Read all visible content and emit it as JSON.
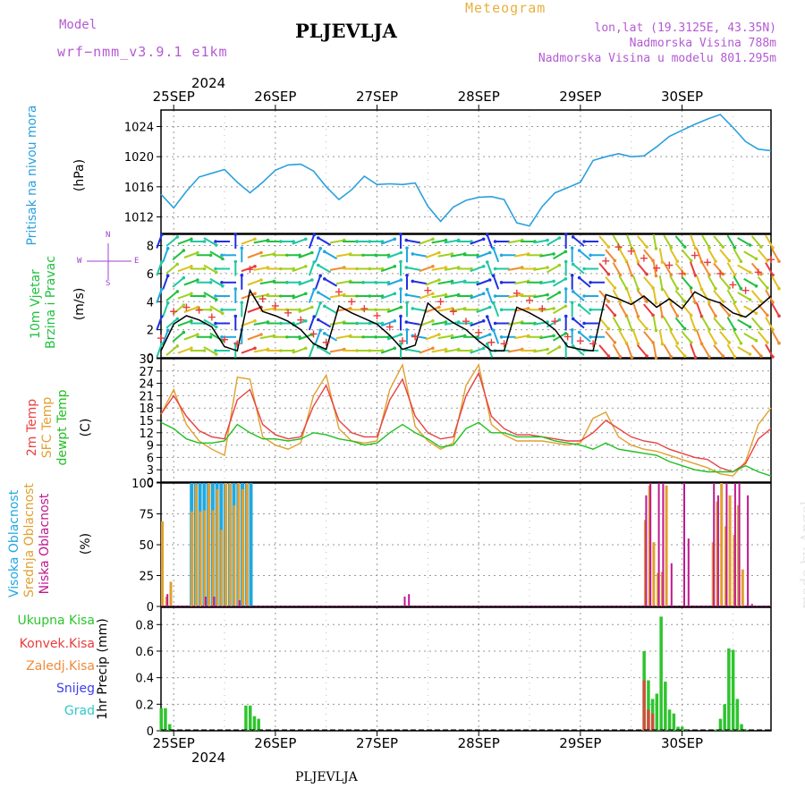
{
  "header": {
    "model_label": "Model",
    "model_name": "wrf−nmm_v3.9.1  e1km",
    "station": "PLJEVLJA",
    "product": "Meteogram",
    "lonlat": "lon,lat (19.3125E, 43.35N)",
    "elevation": "Nadmorska Visina 788m",
    "model_elevation": "Nadmorska Visina u modelu 801.295m",
    "year_top": "2024",
    "year_bottom": "2024",
    "footer_station": "PLJEVLJA",
    "credit": "made by Angel"
  },
  "panel_labels": {
    "pressure": [
      "Pritisak na nivou mora",
      "(hPa)"
    ],
    "wind": [
      "10m Vjetar",
      "Brzina i Pravac",
      "(m/s)"
    ],
    "temp": [
      "2m Temp",
      "SFC Temp",
      "dewpt Temp",
      "(C)"
    ],
    "cloud": [
      "Visoka Oblacnost",
      "Srednja Oblacnost",
      "Niska Oblacnost",
      "(%)"
    ],
    "precip": [
      "1hr Precip (mm)"
    ],
    "compass": {
      "n": "N",
      "s": "S",
      "w": "W",
      "e": "E"
    }
  },
  "precip_legend": [
    {
      "label": "Ukupna Kisa",
      "color": "#2ec42e"
    },
    {
      "label": "Konvek.Kisa",
      "color": "#e83c3c"
    },
    {
      "label": "Zaledj.Kisa",
      "color": "#f08a3c"
    },
    {
      "label": "Snijeg",
      "color": "#3c3cf0"
    },
    {
      "label": "Grad",
      "color": "#30c8c8"
    }
  ],
  "colors": {
    "pressure": "#2aa0dc",
    "t2m": "#e84040",
    "tsfc": "#e0a030",
    "dewpt": "#20c020",
    "wind_speed": "#000000",
    "gust": "#e83c3c",
    "high_cloud": "#20a8e0",
    "mid_cloud": "#e0a030",
    "low_cloud": "#c01890"
  },
  "chart_data": [
    {
      "type": "line",
      "name": "pressure",
      "x_unit": "hours from 2024-09-24 21:00 UTC",
      "xticks": [
        "25SEP",
        "26SEP",
        "27SEP",
        "28SEP",
        "29SEP",
        "30SEP"
      ],
      "xlim": [
        0,
        144
      ],
      "ylabel": "(hPa)",
      "yticks": [
        1012,
        1016,
        1020,
        1024
      ],
      "ylim": [
        1009.8,
        1026.2
      ],
      "x": [
        0,
        3,
        6,
        9,
        12,
        15,
        18,
        21,
        24,
        27,
        30,
        33,
        36,
        39,
        42,
        45,
        48,
        51,
        54,
        57,
        60,
        63,
        66,
        69,
        72,
        75,
        78,
        81,
        84,
        87,
        90,
        93,
        96,
        99,
        102,
        105,
        108,
        111,
        114,
        117,
        120,
        123,
        126,
        129,
        132,
        135,
        138,
        141,
        144
      ],
      "values": [
        1015.0,
        1013.2,
        1015.4,
        1017.3,
        1017.8,
        1018.3,
        1016.6,
        1015.2,
        1016.6,
        1018.2,
        1018.9,
        1019.0,
        1018.1,
        1016.0,
        1014.3,
        1015.6,
        1017.4,
        1016.3,
        1016.4,
        1016.3,
        1016.5,
        1013.4,
        1011.4,
        1013.3,
        1014.2,
        1014.6,
        1014.7,
        1014.3,
        1011.2,
        1010.8,
        1013.4,
        1015.2,
        1015.9,
        1016.6,
        1019.5,
        1020.0,
        1020.4,
        1020.0,
        1020.1,
        1021.3,
        1022.7,
        1023.5,
        1024.3,
        1025.0,
        1025.6,
        1023.9,
        1022.0,
        1021.0,
        1020.8
      ]
    },
    {
      "type": "line",
      "name": "wind",
      "ylabel": "(m/s)",
      "yticks": [
        0,
        2,
        4,
        6,
        8
      ],
      "ylim": [
        0,
        8.8
      ],
      "series": [
        {
          "name": "speed",
          "x": [
            0,
            3,
            6,
            9,
            12,
            15,
            18,
            21,
            24,
            27,
            30,
            33,
            36,
            39,
            42,
            45,
            48,
            51,
            54,
            57,
            60,
            63,
            66,
            69,
            72,
            75,
            78,
            81,
            84,
            87,
            90,
            93,
            96,
            99,
            102,
            105,
            108,
            111,
            114,
            117,
            120,
            123,
            126,
            129,
            132,
            135,
            138,
            141,
            144
          ],
          "values": [
            0.5,
            2.4,
            3.0,
            2.7,
            2.2,
            0.8,
            0.5,
            4.8,
            3.3,
            3.0,
            2.6,
            2.0,
            1.0,
            0.6,
            3.7,
            3.2,
            2.8,
            2.4,
            1.6,
            0.6,
            0.9,
            3.9,
            3.1,
            2.5,
            2.0,
            1.2,
            0.5,
            0.5,
            3.6,
            3.2,
            2.7,
            2.0,
            0.8,
            0.6,
            0.5,
            4.5,
            4.2,
            3.8,
            4.4,
            3.6,
            4.2,
            3.5,
            4.7,
            4.2,
            3.9,
            3.2,
            2.9,
            3.6,
            4.4
          ]
        },
        {
          "name": "gust",
          "x": [
            0,
            3,
            6,
            9,
            12,
            15,
            18,
            21,
            24,
            27,
            30,
            33,
            36,
            39,
            42,
            45,
            48,
            51,
            54,
            57,
            60,
            63,
            66,
            69,
            72,
            75,
            78,
            81,
            84,
            87,
            90,
            93,
            96,
            99,
            102,
            105,
            108,
            111,
            114,
            117,
            120,
            123,
            126,
            129,
            132,
            135,
            138,
            141,
            144
          ],
          "values": [
            1.4,
            3.3,
            3.6,
            3.4,
            2.9,
            1.3,
            1.0,
            6.3,
            4.2,
            3.7,
            3.2,
            2.7,
            1.7,
            1.1,
            4.7,
            4.0,
            3.5,
            3.0,
            2.2,
            1.2,
            1.5,
            4.8,
            4.0,
            3.3,
            2.6,
            1.8,
            1.1,
            1.0,
            4.6,
            4.1,
            3.5,
            2.6,
            1.5,
            1.2,
            1.0,
            6.9,
            7.9,
            7.6,
            7.1,
            6.4,
            6.6,
            6.0,
            7.3,
            6.8,
            6.0,
            5.2,
            4.8,
            6.1,
            7.0
          ]
        }
      ],
      "wind_barbs_direction_deg": [
        200,
        230,
        250,
        270,
        300,
        90,
        180,
        250,
        260,
        270,
        270,
        250,
        200,
        120,
        260,
        270,
        270,
        270,
        250,
        180,
        100,
        250,
        260,
        260,
        270,
        250,
        160,
        90,
        260,
        270,
        260,
        240,
        180,
        130,
        90,
        320,
        330,
        340,
        320,
        350,
        330,
        320,
        340,
        330,
        320,
        330,
        300,
        320,
        330
      ]
    },
    {
      "type": "line",
      "name": "temperature",
      "ylabel": "(C)",
      "yticks": [
        0,
        3,
        6,
        9,
        12,
        15,
        18,
        21,
        24,
        27,
        30
      ],
      "ylim": [
        0,
        30
      ],
      "series": [
        {
          "name": "2m Temp",
          "x": [
            0,
            3,
            6,
            9,
            12,
            15,
            18,
            21,
            24,
            27,
            30,
            33,
            36,
            39,
            42,
            45,
            48,
            51,
            54,
            57,
            60,
            63,
            66,
            69,
            72,
            75,
            78,
            81,
            84,
            87,
            90,
            93,
            96,
            99,
            102,
            105,
            108,
            111,
            114,
            117,
            120,
            123,
            126,
            129,
            132,
            135,
            138,
            141,
            144
          ],
          "values": [
            16.5,
            21.0,
            16.0,
            12.5,
            11.0,
            10.5,
            20.0,
            22.5,
            14.0,
            11.5,
            10.5,
            11.0,
            18.5,
            23.5,
            15.0,
            12.0,
            11.0,
            11.0,
            20.0,
            25.0,
            16.0,
            12.0,
            10.5,
            11.0,
            21.0,
            26.5,
            16.0,
            13.0,
            11.5,
            11.5,
            11.0,
            10.5,
            10.0,
            10.0,
            12.0,
            15.0,
            13.0,
            11.0,
            10.0,
            9.5,
            8.0,
            7.0,
            6.0,
            5.5,
            3.5,
            2.5,
            4.5,
            10.5,
            13.0
          ]
        },
        {
          "name": "SFC Temp",
          "x": [
            0,
            3,
            6,
            9,
            12,
            15,
            18,
            21,
            24,
            27,
            30,
            33,
            36,
            39,
            42,
            45,
            48,
            51,
            54,
            57,
            60,
            63,
            66,
            69,
            72,
            75,
            78,
            81,
            84,
            87,
            90,
            93,
            96,
            99,
            102,
            105,
            108,
            111,
            114,
            117,
            120,
            123,
            126,
            129,
            132,
            135,
            138,
            141,
            144
          ],
          "values": [
            16.5,
            22.5,
            14.0,
            10.0,
            8.0,
            6.5,
            25.5,
            25.0,
            11.0,
            9.0,
            8.0,
            9.5,
            21.0,
            26.0,
            13.0,
            10.0,
            9.5,
            10.0,
            22.5,
            28.5,
            13.5,
            10.0,
            8.0,
            9.5,
            23.5,
            28.5,
            14.0,
            11.5,
            10.0,
            10.0,
            10.0,
            9.5,
            9.0,
            9.5,
            15.5,
            17.0,
            11.0,
            9.0,
            8.0,
            7.5,
            6.5,
            5.5,
            4.5,
            3.5,
            2.0,
            1.5,
            5.0,
            14.0,
            18.0
          ]
        },
        {
          "name": "dewpt Temp",
          "x": [
            0,
            3,
            6,
            9,
            12,
            15,
            18,
            21,
            24,
            27,
            30,
            33,
            36,
            39,
            42,
            45,
            48,
            51,
            54,
            57,
            60,
            63,
            66,
            69,
            72,
            75,
            78,
            81,
            84,
            87,
            90,
            93,
            96,
            99,
            102,
            105,
            108,
            111,
            114,
            117,
            120,
            123,
            126,
            129,
            132,
            135,
            138,
            141,
            144
          ],
          "values": [
            14.5,
            13.0,
            10.5,
            9.5,
            9.5,
            10.0,
            14.0,
            12.0,
            10.5,
            10.5,
            10.0,
            10.5,
            12.0,
            11.5,
            10.5,
            10.0,
            9.0,
            9.5,
            12.0,
            14.0,
            12.0,
            10.5,
            8.5,
            9.0,
            13.0,
            14.5,
            12.0,
            12.0,
            11.0,
            11.0,
            11.0,
            10.0,
            9.5,
            9.0,
            8.0,
            9.5,
            8.0,
            7.5,
            7.0,
            6.5,
            5.0,
            4.0,
            3.0,
            2.5,
            2.5,
            2.5,
            4.0,
            2.5,
            1.5
          ]
        }
      ]
    },
    {
      "type": "bar",
      "name": "cloud",
      "ylabel": "(%)",
      "yticks": [
        0,
        25,
        50,
        75,
        100
      ],
      "ylim": [
        0,
        100
      ],
      "series": [
        {
          "name": "Visoka Oblacnost",
          "x": [
            7,
            8,
            9,
            10,
            11,
            12,
            13,
            14,
            15,
            16,
            17,
            18,
            19,
            20,
            21
          ],
          "values": [
            100,
            100,
            100,
            100,
            100,
            100,
            100,
            100,
            100,
            100,
            100,
            100,
            100,
            100,
            100
          ]
        },
        {
          "name": "Srednja Oblacnost",
          "x": [
            0,
            1,
            2,
            7,
            8,
            9,
            10,
            11,
            12,
            13,
            14,
            15,
            16,
            17,
            18,
            19,
            20,
            114,
            115,
            116,
            117,
            118,
            119,
            130,
            131,
            132,
            133,
            134,
            135,
            136,
            137
          ],
          "values": [
            69,
            8,
            20,
            77,
            99,
            77,
            78,
            100,
            78,
            95,
            62,
            100,
            100,
            82,
            100,
            95,
            100,
            70,
            98,
            52,
            27,
            28,
            98,
            52,
            85,
            100,
            65,
            90,
            58,
            82,
            30
          ]
        },
        {
          "name": "Niska Oblacnost",
          "x": [
            1,
            10,
            12,
            18,
            57,
            58,
            114,
            115,
            117,
            118,
            120,
            123,
            124,
            130,
            131,
            133,
            135,
            136,
            138,
            139
          ],
          "values": [
            10,
            8,
            8,
            5,
            8,
            10,
            90,
            100,
            100,
            100,
            35,
            100,
            55,
            100,
            90,
            100,
            100,
            100,
            90,
            2
          ]
        }
      ]
    },
    {
      "type": "bar",
      "name": "precip",
      "ylabel": "1hr Precip (mm)",
      "yticks": [
        0,
        0.2,
        0.4,
        0.6,
        0.8
      ],
      "ylim": [
        0,
        0.93
      ],
      "series": [
        {
          "name": "Ukupna Kisa",
          "x": [
            0,
            1,
            2,
            3,
            20,
            21,
            22,
            23,
            114,
            115,
            116,
            117,
            118,
            119,
            120,
            121,
            122,
            123,
            124,
            131,
            132,
            133,
            134,
            135,
            136,
            137,
            138
          ],
          "values": [
            0.17,
            0.17,
            0.05,
            0.0,
            0.19,
            0.19,
            0.11,
            0.09,
            0.6,
            0.38,
            0.24,
            0.28,
            0.86,
            0.37,
            0.16,
            0.13,
            0.03,
            0.03,
            0.01,
            0.01,
            0.09,
            0.2,
            0.62,
            0.61,
            0.24,
            0.05,
            0.01
          ]
        },
        {
          "name": "Konvek.Kisa",
          "x": [
            114,
            115,
            116
          ],
          "values": [
            0.38,
            0.16,
            0.13
          ]
        }
      ]
    }
  ]
}
